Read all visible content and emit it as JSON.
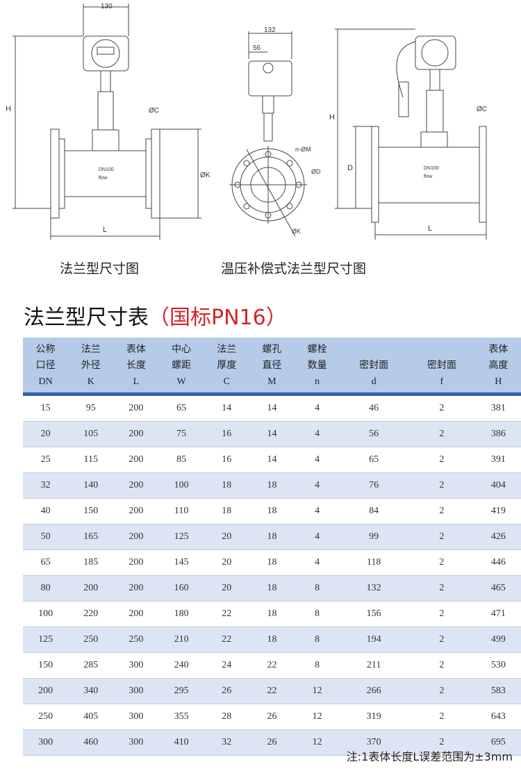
{
  "drawings": {
    "flange": {
      "caption": "法兰型尺寸图",
      "labels": {
        "width": "130",
        "height": "H",
        "c": "ØC",
        "k": "ØK",
        "length": "L",
        "nameplate": "DN100",
        "flow": "flow"
      }
    },
    "side": {
      "labels": {
        "width": "132",
        "offset": "56",
        "holes": "n-ØM",
        "d": "ØD",
        "k": "ØK"
      }
    },
    "temp": {
      "caption": "温压补偿式法兰型尺寸图",
      "labels": {
        "height": "H",
        "d": "D",
        "c": "ØC",
        "length": "L",
        "nameplate": "DN100",
        "flow": "flow"
      }
    }
  },
  "table": {
    "title": "法兰型尺寸表",
    "title_note": "（国标PN16）",
    "headers": [
      {
        "l1": "公称",
        "l2": "口径",
        "sym": "DN"
      },
      {
        "l1": "法兰",
        "l2": "外径",
        "sym": "K"
      },
      {
        "l1": "表体",
        "l2": "长度",
        "sym": "L"
      },
      {
        "l1": "中心",
        "l2": "螺距",
        "sym": "W"
      },
      {
        "l1": "法兰",
        "l2": "厚度",
        "sym": "C"
      },
      {
        "l1": "螺孔",
        "l2": "直径",
        "sym": "M"
      },
      {
        "l1": "螺栓",
        "l2": "数量",
        "sym": "n"
      },
      {
        "l1": "",
        "l2": "密封面",
        "sym": "d"
      },
      {
        "l1": "",
        "l2": "密封面",
        "sym": "f"
      },
      {
        "l1": "表体",
        "l2": "高度",
        "sym": "H"
      }
    ],
    "rows": [
      [
        "15",
        "95",
        "200",
        "65",
        "14",
        "14",
        "4",
        "46",
        "2",
        "381"
      ],
      [
        "20",
        "105",
        "200",
        "75",
        "16",
        "14",
        "4",
        "56",
        "2",
        "386"
      ],
      [
        "25",
        "115",
        "200",
        "85",
        "16",
        "14",
        "4",
        "65",
        "2",
        "391"
      ],
      [
        "32",
        "140",
        "200",
        "100",
        "18",
        "18",
        "4",
        "76",
        "2",
        "404"
      ],
      [
        "40",
        "150",
        "200",
        "110",
        "18",
        "18",
        "4",
        "84",
        "2",
        "419"
      ],
      [
        "50",
        "165",
        "200",
        "125",
        "20",
        "18",
        "4",
        "99",
        "2",
        "426"
      ],
      [
        "65",
        "185",
        "200",
        "145",
        "20",
        "18",
        "4",
        "118",
        "2",
        "446"
      ],
      [
        "80",
        "200",
        "200",
        "160",
        "20",
        "18",
        "8",
        "132",
        "2",
        "465"
      ],
      [
        "100",
        "220",
        "200",
        "180",
        "22",
        "18",
        "8",
        "156",
        "2",
        "471"
      ],
      [
        "125",
        "250",
        "250",
        "210",
        "22",
        "18",
        "8",
        "194",
        "2",
        "499"
      ],
      [
        "150",
        "285",
        "300",
        "240",
        "24",
        "22",
        "8",
        "211",
        "2",
        "530"
      ],
      [
        "200",
        "340",
        "300",
        "295",
        "26",
        "22",
        "12",
        "266",
        "2",
        "583"
      ],
      [
        "250",
        "405",
        "300",
        "355",
        "28",
        "26",
        "12",
        "319",
        "2",
        "643"
      ],
      [
        "300",
        "460",
        "300",
        "410",
        "32",
        "26",
        "12",
        "370",
        "2",
        "695"
      ]
    ],
    "colors": {
      "header_bg": "#b5cbe8",
      "header_rule": "#2f5fa8",
      "alt_row": "#dce5f3",
      "accent_red": "#d8232a"
    }
  },
  "note": "注:1表体长度L误差范围为±3mm"
}
